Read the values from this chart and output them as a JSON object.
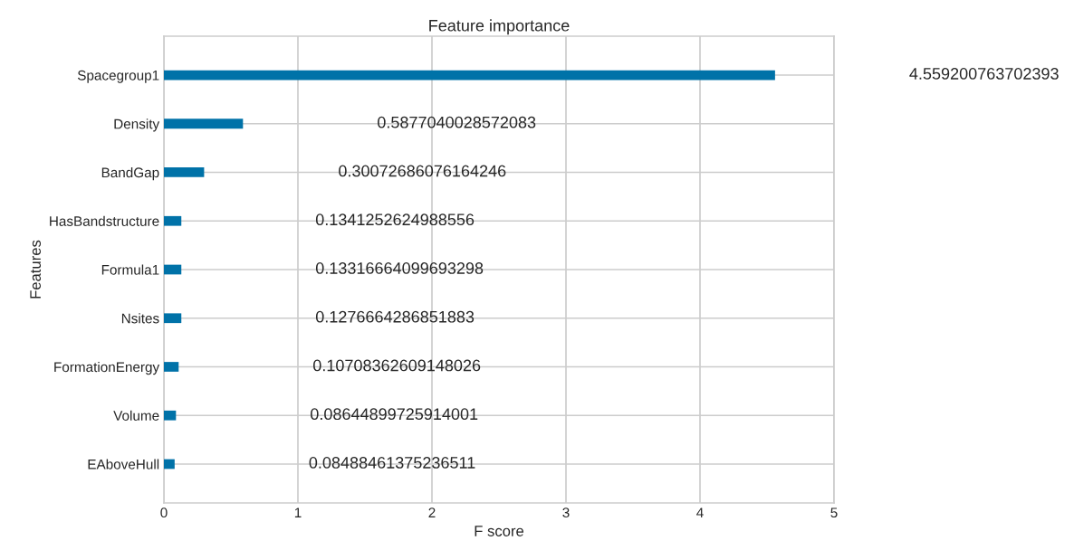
{
  "chart_data": {
    "type": "bar",
    "orientation": "horizontal",
    "title": "Feature importance",
    "xlabel": "F score",
    "ylabel": "Features",
    "categories": [
      "Spacegroup1",
      "Density",
      "BandGap",
      "HasBandstructure",
      "Formula1",
      "Nsites",
      "FormationEnergy",
      "Volume",
      "EAboveHull"
    ],
    "values": [
      4.56,
      0.59,
      0.3,
      0.13,
      0.13,
      0.13,
      0.11,
      0.09,
      0.08
    ],
    "annotations": [
      "4.559200763702393",
      "0.5877040028572083",
      "0.30072686076164246",
      "0.1341252624988556",
      "0.13316664099693298",
      "0.1276664286851883",
      "0.10708362609148026",
      "0.08644899725914001",
      "0.08488461375236511"
    ],
    "color": "#0072a8",
    "grid": true,
    "xlim": [
      0,
      5
    ],
    "xticks": [
      0,
      1,
      2,
      3,
      4,
      5
    ]
  }
}
